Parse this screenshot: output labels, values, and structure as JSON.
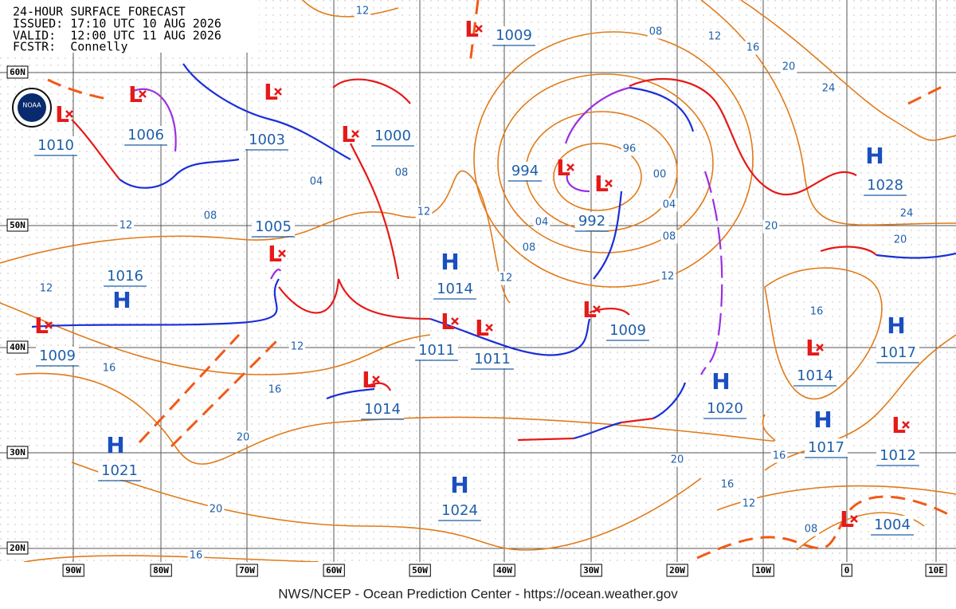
{
  "header": {
    "title": "24-HOUR SURFACE FORECAST",
    "issued": "ISSUED: 17:10 UTC 10 AUG 2026",
    "valid": "VALID:  12:00 UTC 11 AUG 2026",
    "forecaster": "FCSTR:  Connelly"
  },
  "logo": "NOAA",
  "latitude_labels": [
    "60N",
    "50N",
    "40N",
    "30N",
    "20N"
  ],
  "longitude_labels": [
    "90W",
    "80W",
    "70W",
    "60W",
    "50W",
    "40W",
    "30W",
    "20W",
    "10W",
    "0",
    "10E"
  ],
  "pressure_centers": [
    {
      "symbol": "L",
      "value": 1009
    },
    {
      "symbol": "L",
      "value": 1010
    },
    {
      "symbol": "L",
      "value": 1006
    },
    {
      "symbol": "L",
      "value": 1003
    },
    {
      "symbol": "L",
      "value": 1000
    },
    {
      "symbol": "L",
      "value": 994
    },
    {
      "symbol": "L",
      "value": 992
    },
    {
      "symbol": "L",
      "value": 1005
    },
    {
      "symbol": "H",
      "value": 1016
    },
    {
      "symbol": "H",
      "value": 1014
    },
    {
      "symbol": "L",
      "value": 1009
    },
    {
      "symbol": "L",
      "value": 1011
    },
    {
      "symbol": "L",
      "value": 1011
    },
    {
      "symbol": "L",
      "value": 1009
    },
    {
      "symbol": "L",
      "value": 1014
    },
    {
      "symbol": "H",
      "value": 1020
    },
    {
      "symbol": "L",
      "value": 1014
    },
    {
      "symbol": "H",
      "value": 1017
    },
    {
      "symbol": "H",
      "value": 1017
    },
    {
      "symbol": "L",
      "value": 1012
    },
    {
      "symbol": "H",
      "value": 1021
    },
    {
      "symbol": "H",
      "value": 1024
    },
    {
      "symbol": "L",
      "value": 1004
    },
    {
      "symbol": "H",
      "value": 1028
    }
  ],
  "isobar_labels": [
    "12",
    "08",
    "12",
    "16",
    "20",
    "24",
    "96",
    "00",
    "04",
    "08",
    "04",
    "08",
    "12",
    "12",
    "12",
    "08",
    "04",
    "08",
    "12",
    "12",
    "12",
    "16",
    "16",
    "20",
    "20",
    "16",
    "20",
    "16",
    "16",
    "12",
    "08",
    "16",
    "20",
    "20",
    "24"
  ],
  "footer": "NWS/NCEP - Ocean Prediction Center - https://ocean.weather.gov"
}
